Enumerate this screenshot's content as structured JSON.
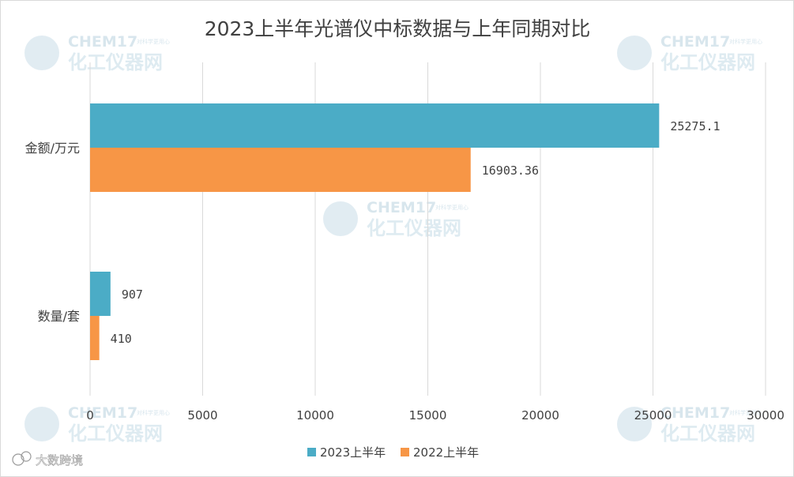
{
  "chart_data": {
    "type": "bar",
    "orientation": "horizontal",
    "title": "2023上半年光谱仪中标数据与上年同期对比",
    "categories": [
      "金额/万元",
      "数量/套"
    ],
    "series": [
      {
        "name": "2023上半年",
        "color": "#4bacc6",
        "values": [
          25275.1,
          907
        ],
        "labels": [
          "25275.1",
          "907"
        ]
      },
      {
        "name": "2022上半年",
        "color": "#f79646",
        "values": [
          16903.36,
          410
        ],
        "labels": [
          "16903.36",
          "410"
        ]
      }
    ],
    "xlim": [
      0,
      30000
    ],
    "xticks": [
      0,
      5000,
      10000,
      15000,
      20000,
      25000,
      30000
    ],
    "grid": true,
    "legend_position": "bottom"
  },
  "watermark": {
    "brand": "CHEM17",
    "tagline": "对科学更用心",
    "name": "化工仪器网"
  },
  "source_mark": "大数跨境"
}
